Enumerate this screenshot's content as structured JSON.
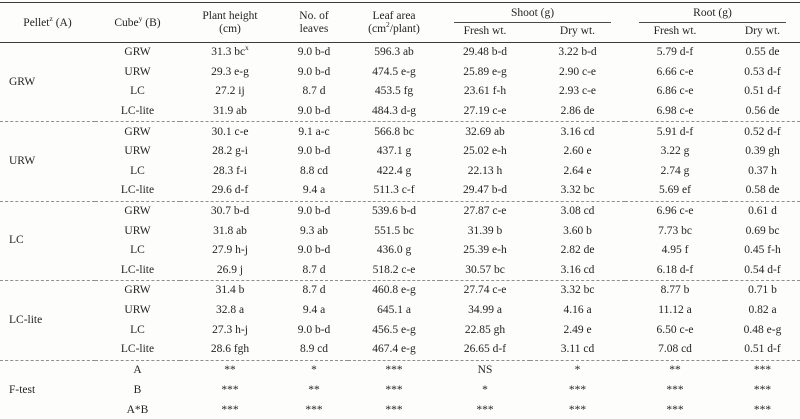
{
  "colors": {
    "text": "#242424",
    "rule": "#3a3a3a",
    "dashed_rule": "#8f8f8f",
    "background": "#fdfdfc"
  },
  "table": {
    "header": {
      "pellet": {
        "pre": "Pellet",
        "sup": "z",
        "post": " (A)"
      },
      "cube": {
        "pre": "Cube",
        "sup": "y",
        "post": " (B)"
      },
      "plant_height": {
        "line1": "Plant height",
        "line2": "(cm)"
      },
      "leaves": {
        "line1": "No. of",
        "line2": "leaves"
      },
      "leaf_area": {
        "line1": "Leaf area",
        "line2_pre": "(cm",
        "line2_sup": "2",
        "line2_post": "/plant)"
      },
      "shoot": "Shoot (g)",
      "root": "Root (g)",
      "fresh": "Fresh wt.",
      "dry": "Dry wt."
    },
    "groups": [
      {
        "label": "GRW",
        "rows": [
          {
            "cube": "GRW",
            "cells": [
              {
                "v": "31.3 bc",
                "sup": "x"
              },
              "9.0 b-d",
              "596.3 ab",
              "29.48 b-d",
              "3.22 b-d",
              "5.79 d-f",
              "0.55 de"
            ]
          },
          {
            "cube": "URW",
            "cells": [
              "29.3 e-g",
              "9.0 b-d",
              "474.5 e-g",
              "25.89 e-g",
              "2.90 c-e",
              "6.66 c-e",
              "0.53 d-f"
            ]
          },
          {
            "cube": "LC",
            "cells": [
              "27.2 ij",
              "8.7 d",
              "453.5 fg",
              "23.61 f-h",
              "2.93 c-e",
              "6.86 c-e",
              "0.51 d-f"
            ]
          },
          {
            "cube": "LC-lite",
            "cells": [
              "31.9 ab",
              "9.0 b-d",
              "484.3 d-g",
              "27.19 c-e",
              "2.86 de",
              "6.98 c-e",
              "0.56 de"
            ]
          }
        ]
      },
      {
        "label": "URW",
        "rows": [
          {
            "cube": "GRW",
            "cells": [
              "30.1 c-e",
              "9.1 a-c",
              "566.8 bc",
              "32.69 ab",
              "3.16 cd",
              "5.91 d-f",
              "0.52 d-f"
            ]
          },
          {
            "cube": "URW",
            "cells": [
              "28.2 g-i",
              "9.0 b-d",
              "437.1 g",
              "25.02 e-h",
              "2.60 e",
              "3.22 g",
              "0.39 gh"
            ]
          },
          {
            "cube": "LC",
            "cells": [
              "28.3 f-i",
              "8.8 cd",
              "422.4 g",
              "22.13 h",
              "2.64 e",
              "2.74 g",
              "0.37 h"
            ]
          },
          {
            "cube": "LC-lite",
            "cells": [
              "29.6 d-f",
              "9.4 a",
              "511.3 c-f",
              "29.47 b-d",
              "3.32 bc",
              "5.69 ef",
              "0.58 de"
            ]
          }
        ]
      },
      {
        "label": "LC",
        "rows": [
          {
            "cube": "GRW",
            "cells": [
              "30.7 b-d",
              "9.0 b-d",
              "539.6 b-d",
              "27.87 c-e",
              "3.08 cd",
              "6.96 c-e",
              "0.61 d"
            ]
          },
          {
            "cube": "URW",
            "cells": [
              "31.8 ab",
              "9.3 ab",
              "551.5 bc",
              "31.39 b",
              "3.60 b",
              "7.73 bc",
              "0.69 bc"
            ]
          },
          {
            "cube": "LC",
            "cells": [
              "27.9 h-j",
              "9.0 b-d",
              "436.0 g",
              "25.39 e-h",
              "2.82 de",
              "4.95 f",
              "0.45 f-h"
            ]
          },
          {
            "cube": "LC-lite",
            "cells": [
              "26.9 j",
              "8.7 d",
              "518.2 c-e",
              "30.57 bc",
              "3.16 cd",
              "6.18 d-f",
              "0.54 d-f"
            ]
          }
        ]
      },
      {
        "label": "LC-lite",
        "rows": [
          {
            "cube": "GRW",
            "cells": [
              "31.4 b",
              "8.7 d",
              "460.8 e-g",
              "27.74 c-e",
              "3.32 bc",
              "8.77 b",
              "0.71 b"
            ]
          },
          {
            "cube": "URW",
            "cells": [
              "32.8 a",
              "9.4 a",
              "645.1 a",
              "34.99 a",
              "4.16 a",
              "11.12 a",
              "0.82 a"
            ]
          },
          {
            "cube": "LC",
            "cells": [
              "27.3 h-j",
              "9.0 b-d",
              "456.5 e-g",
              "22.85 gh",
              "2.49 e",
              "6.50 c-e",
              "0.48 e-g"
            ]
          },
          {
            "cube": "LC-lite",
            "cells": [
              "28.6 fgh",
              "8.9 cd",
              "467.4 e-g",
              "26.65 d-f",
              "3.11 cd",
              "7.08 cd",
              "0.51 d-f"
            ]
          }
        ]
      }
    ],
    "f_test": {
      "label": "F-test",
      "rows": [
        {
          "factor": "A",
          "cells": [
            "**",
            "*",
            "***",
            "NS",
            "*",
            "**",
            "***"
          ]
        },
        {
          "factor": "B",
          "cells": [
            "***",
            "**",
            "***",
            "*",
            "***",
            "***",
            "***"
          ]
        },
        {
          "factor": "A*B",
          "cells": [
            "***",
            "***",
            "***",
            "***",
            "***",
            "***",
            "***"
          ]
        }
      ]
    }
  }
}
